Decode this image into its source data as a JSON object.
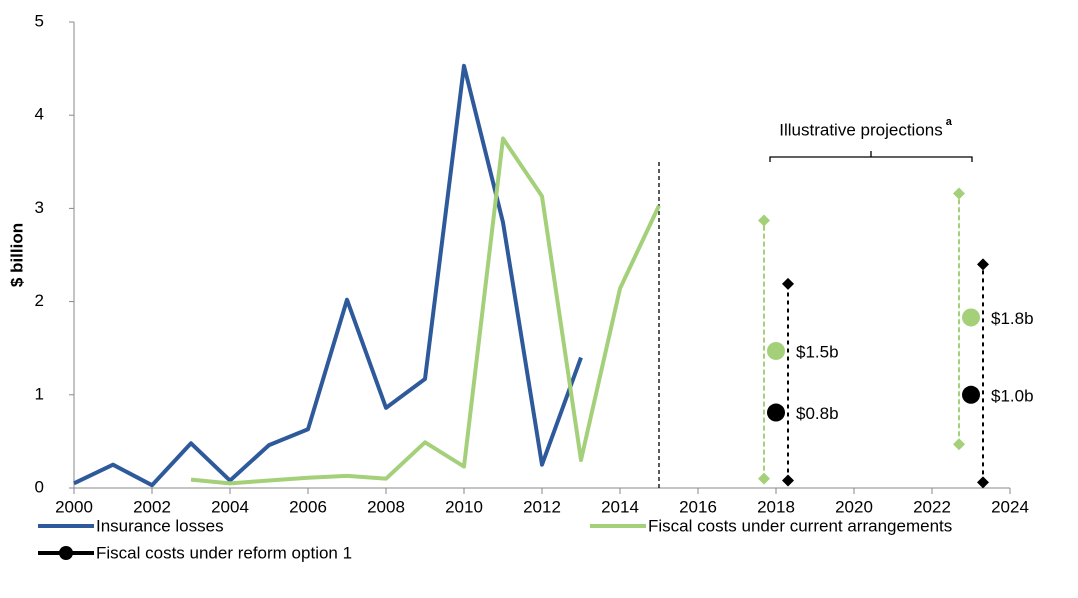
{
  "chart_data": {
    "type": "line",
    "y_label": "$ billion",
    "x": [
      2000,
      2001,
      2002,
      2003,
      2004,
      2005,
      2006,
      2007,
      2008,
      2009,
      2010,
      2011,
      2012,
      2013,
      2014,
      2015
    ],
    "xlim": [
      2000,
      2024
    ],
    "xticks": [
      2000,
      2002,
      2004,
      2006,
      2008,
      2010,
      2012,
      2014,
      2016,
      2018,
      2020,
      2022,
      2024
    ],
    "ylim": [
      0,
      5
    ],
    "yticks": [
      0,
      1,
      2,
      3,
      4,
      5
    ],
    "grid": false,
    "series": [
      {
        "name": "Insurance losses",
        "color": "#2e5a9c",
        "values": [
          0.05,
          0.25,
          0.03,
          0.48,
          0.08,
          0.46,
          0.63,
          2.02,
          0.86,
          1.17,
          4.53,
          2.85,
          0.25,
          1.4,
          null,
          null
        ]
      },
      {
        "name": "Fiscal costs under current arrangements",
        "color": "#a4d07a",
        "values": [
          null,
          null,
          null,
          0.09,
          0.05,
          0.08,
          0.11,
          0.13,
          0.1,
          0.49,
          0.23,
          3.75,
          3.13,
          0.3,
          2.14,
          3.03
        ],
        "points": [
          {
            "x": 2018,
            "value": 1.47,
            "low": 0.1,
            "high": 2.87,
            "label": "$1.5b"
          },
          {
            "x": 2023,
            "value": 1.83,
            "low": 0.47,
            "high": 3.16,
            "label": "$1.8b"
          }
        ]
      },
      {
        "name": "Fiscal costs under reform option 1",
        "color": "#000000",
        "points": [
          {
            "x": 2018,
            "value": 0.81,
            "low": 0.08,
            "high": 2.19,
            "label": "$0.8b"
          },
          {
            "x": 2023,
            "value": 1.0,
            "low": 0.06,
            "high": 2.4,
            "label": "$1.0b"
          }
        ]
      }
    ],
    "divider": {
      "x": 2015,
      "top": 3.5
    },
    "annotation": {
      "text": "Illustrative projections",
      "note": "a"
    }
  }
}
